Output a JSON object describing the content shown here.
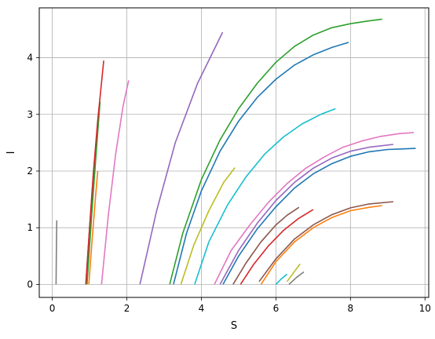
{
  "chart_data": {
    "type": "line",
    "title": "",
    "xlabel": "S",
    "ylabel": "I",
    "xlim": [
      -0.35,
      10.1
    ],
    "ylim": [
      -0.23,
      4.88
    ],
    "xticks": [
      0,
      2,
      4,
      6,
      8,
      10
    ],
    "yticks": [
      0,
      1,
      2,
      3,
      4
    ],
    "xtick_labels": [
      "0",
      "2",
      "4",
      "6",
      "8",
      "10"
    ],
    "ytick_labels": [
      "0",
      "1",
      "2",
      "3",
      "4"
    ],
    "grid": true,
    "legend": "none",
    "series": [
      {
        "color": "#7f7f7f",
        "x": [
          0.1,
          0.11,
          0.12
        ],
        "y": [
          0.0,
          0.6,
          1.13
        ]
      },
      {
        "color": "#1f77b4",
        "x": [
          0.9,
          1.0,
          1.1,
          1.2,
          1.26
        ],
        "y": [
          0.0,
          1.0,
          1.9,
          2.7,
          3.15
        ]
      },
      {
        "color": "#2ca02c",
        "x": [
          0.93,
          1.05,
          1.17,
          1.28
        ],
        "y": [
          0.0,
          1.15,
          2.25,
          3.22
        ]
      },
      {
        "color": "#d62728",
        "x": [
          0.9,
          1.0,
          1.1,
          1.22,
          1.38
        ],
        "y": [
          0.0,
          1.0,
          1.95,
          2.9,
          3.95
        ]
      },
      {
        "color": "#ff7f0e",
        "x": [
          0.98,
          1.07,
          1.16,
          1.22
        ],
        "y": [
          0.0,
          0.8,
          1.55,
          2.0
        ]
      },
      {
        "color": "#e377c2",
        "x": [
          1.32,
          1.5,
          1.7,
          1.9,
          2.05
        ],
        "y": [
          0.0,
          1.2,
          2.3,
          3.15,
          3.6
        ]
      },
      {
        "color": "#9467bd",
        "x": [
          2.35,
          2.8,
          3.3,
          3.9,
          4.57
        ],
        "y": [
          0.0,
          1.3,
          2.5,
          3.55,
          4.45
        ]
      },
      {
        "color": "#2ca02c",
        "x": [
          3.15,
          3.5,
          4.0,
          4.5,
          5.0,
          5.5,
          6.0,
          6.5,
          7.0,
          7.5,
          8.0,
          8.5,
          8.85
        ],
        "y": [
          0.0,
          0.9,
          1.85,
          2.55,
          3.1,
          3.55,
          3.92,
          4.2,
          4.4,
          4.53,
          4.6,
          4.65,
          4.68
        ]
      },
      {
        "color": "#1f77b4",
        "x": [
          3.25,
          3.6,
          4.0,
          4.5,
          5.0,
          5.5,
          6.0,
          6.5,
          7.0,
          7.5,
          7.95
        ],
        "y": [
          0.0,
          0.9,
          1.65,
          2.35,
          2.88,
          3.3,
          3.62,
          3.87,
          4.05,
          4.18,
          4.27
        ]
      },
      {
        "color": "#bcbd22",
        "x": [
          3.45,
          3.8,
          4.2,
          4.6,
          4.9
        ],
        "y": [
          0.0,
          0.7,
          1.3,
          1.8,
          2.06
        ]
      },
      {
        "color": "#17becf",
        "x": [
          3.82,
          4.2,
          4.7,
          5.2,
          5.7,
          6.2,
          6.7,
          7.2,
          7.6
        ],
        "y": [
          0.0,
          0.75,
          1.4,
          1.9,
          2.3,
          2.6,
          2.83,
          3.0,
          3.1
        ]
      },
      {
        "color": "#e377c2",
        "x": [
          4.35,
          4.8,
          5.3,
          5.8,
          6.3,
          6.8,
          7.3,
          7.8,
          8.3,
          8.8,
          9.3,
          9.7
        ],
        "y": [
          0.0,
          0.6,
          1.05,
          1.45,
          1.78,
          2.05,
          2.25,
          2.42,
          2.53,
          2.61,
          2.66,
          2.68
        ]
      },
      {
        "color": "#9467bd",
        "x": [
          4.5,
          5.0,
          5.5,
          6.0,
          6.5,
          7.0,
          7.5,
          8.0,
          8.5,
          9.15
        ],
        "y": [
          0.0,
          0.6,
          1.08,
          1.48,
          1.8,
          2.05,
          2.23,
          2.35,
          2.42,
          2.47
        ]
      },
      {
        "color": "#1f77b4",
        "x": [
          4.58,
          5.0,
          5.5,
          6.0,
          6.5,
          7.0,
          7.5,
          8.0,
          8.5,
          9.0,
          9.75
        ],
        "y": [
          0.0,
          0.5,
          0.98,
          1.37,
          1.7,
          1.95,
          2.13,
          2.26,
          2.34,
          2.38,
          2.4
        ]
      },
      {
        "color": "#8c564b",
        "x": [
          4.85,
          5.2,
          5.6,
          6.0,
          6.3,
          6.62
        ],
        "y": [
          0.0,
          0.38,
          0.75,
          1.05,
          1.22,
          1.36
        ]
      },
      {
        "color": "#d62728",
        "x": [
          5.05,
          5.4,
          5.8,
          6.2,
          6.6,
          7.0
        ],
        "y": [
          0.0,
          0.35,
          0.68,
          0.95,
          1.16,
          1.32
        ]
      },
      {
        "color": "#8c564b",
        "x": [
          5.55,
          6.0,
          6.5,
          7.0,
          7.5,
          8.0,
          8.5,
          9.15
        ],
        "y": [
          0.05,
          0.45,
          0.8,
          1.05,
          1.23,
          1.35,
          1.42,
          1.46
        ]
      },
      {
        "color": "#ff7f0e",
        "x": [
          5.6,
          6.0,
          6.5,
          7.0,
          7.5,
          8.0,
          8.5,
          8.85
        ],
        "y": [
          0.0,
          0.4,
          0.75,
          1.0,
          1.18,
          1.3,
          1.36,
          1.39
        ]
      },
      {
        "color": "#17becf",
        "x": [
          6.0,
          6.15,
          6.3
        ],
        "y": [
          0.0,
          0.1,
          0.18
        ]
      },
      {
        "color": "#bcbd22",
        "x": [
          6.3,
          6.5,
          6.65
        ],
        "y": [
          0.05,
          0.23,
          0.36
        ]
      },
      {
        "color": "#7f7f7f",
        "x": [
          6.35,
          6.55,
          6.75
        ],
        "y": [
          0.0,
          0.12,
          0.22
        ]
      }
    ]
  }
}
